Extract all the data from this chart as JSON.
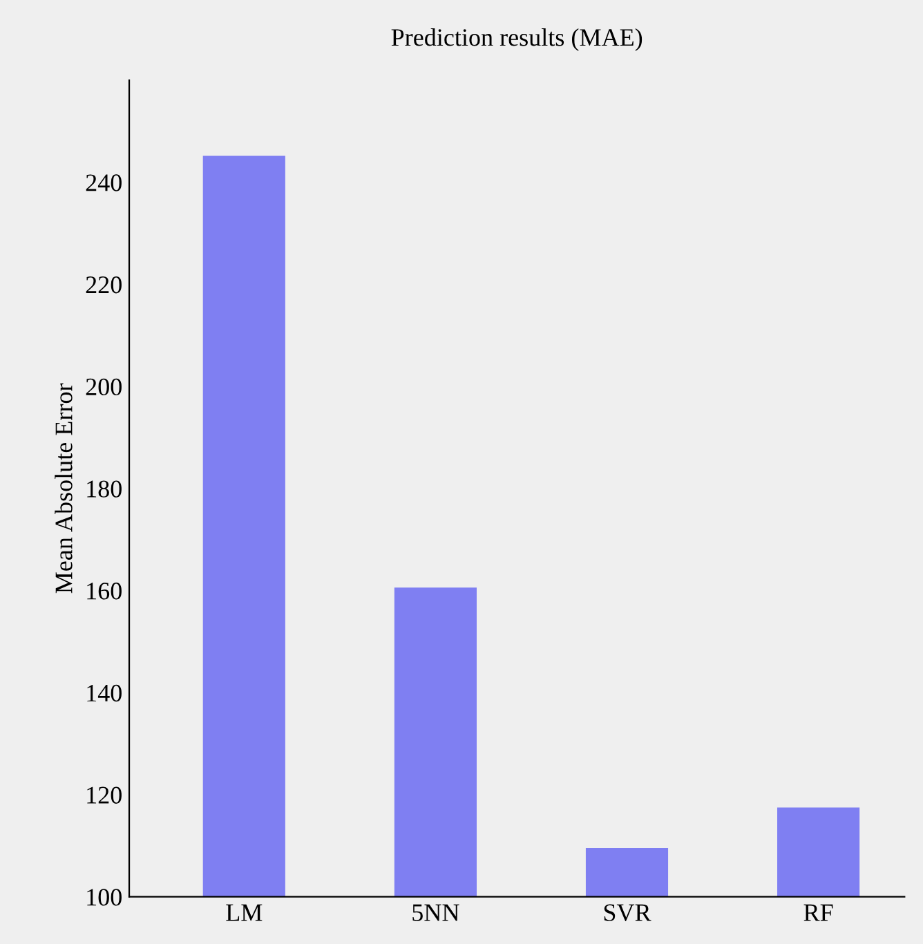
{
  "chart_data": {
    "type": "bar",
    "title": "Prediction results (MAE)",
    "ylabel": "Mean Absolute Error",
    "categories": [
      "LM",
      "5NN",
      "SVR",
      "RF"
    ],
    "values": [
      245,
      160.4,
      109.4,
      117.3
    ],
    "color": "#7f7ff2",
    "ylim": [
      100,
      260
    ],
    "yticks": [
      100,
      120,
      140,
      160,
      180,
      200,
      220,
      240
    ],
    "grid": false
  }
}
